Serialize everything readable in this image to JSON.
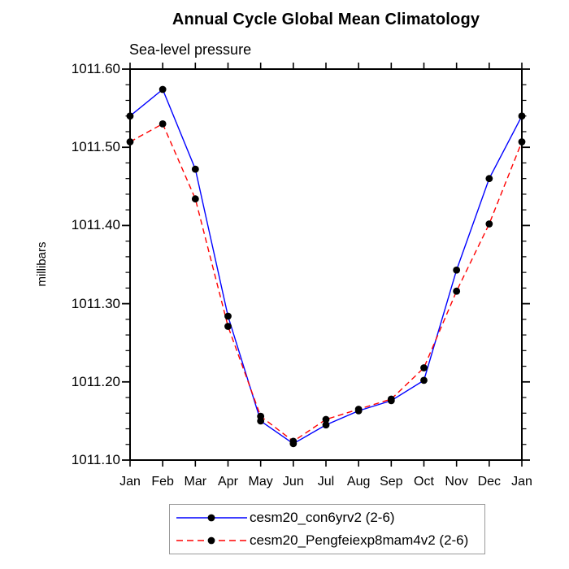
{
  "title": "Annual Cycle Global Mean Climatology",
  "subtitle": "Sea-level pressure",
  "chart_data": {
    "type": "line",
    "title": "Annual Cycle Global Mean Climatology",
    "subtitle": "Sea-level pressure",
    "xlabel": "",
    "ylabel": "millibars",
    "categories": [
      "Jan",
      "Feb",
      "Mar",
      "Apr",
      "May",
      "Jun",
      "Jul",
      "Aug",
      "Sep",
      "Oct",
      "Nov",
      "Dec",
      "Jan"
    ],
    "ylim": [
      1011.1,
      1011.6
    ],
    "ytick_major": 0.1,
    "ytick_minor": 0.02,
    "ytick_labels": [
      "1011.60",
      "1011.50",
      "1011.40",
      "1011.30",
      "1011.20",
      "1011.10"
    ],
    "grid": false,
    "legend_position": "bottom",
    "axis_color": "#000000",
    "marker_color": "#000000",
    "series": [
      {
        "name": "cesm20_con6yrv2 (2-6)",
        "color": "#0000ff",
        "style": "solid",
        "marker": "filled-circle",
        "values": [
          1011.54,
          1011.574,
          1011.472,
          1011.284,
          1011.15,
          1011.121,
          1011.145,
          1011.163,
          1011.176,
          1011.202,
          1011.343,
          1011.46,
          1011.54
        ]
      },
      {
        "name": "cesm20_Pengfeiexp8mam4v2 (2-6)",
        "color": "#ff0000",
        "style": "dashed",
        "marker": "filled-circle",
        "values": [
          1011.507,
          1011.53,
          1011.434,
          1011.271,
          1011.156,
          1011.124,
          1011.152,
          1011.165,
          1011.178,
          1011.218,
          1011.316,
          1011.402,
          1011.507
        ]
      }
    ]
  }
}
